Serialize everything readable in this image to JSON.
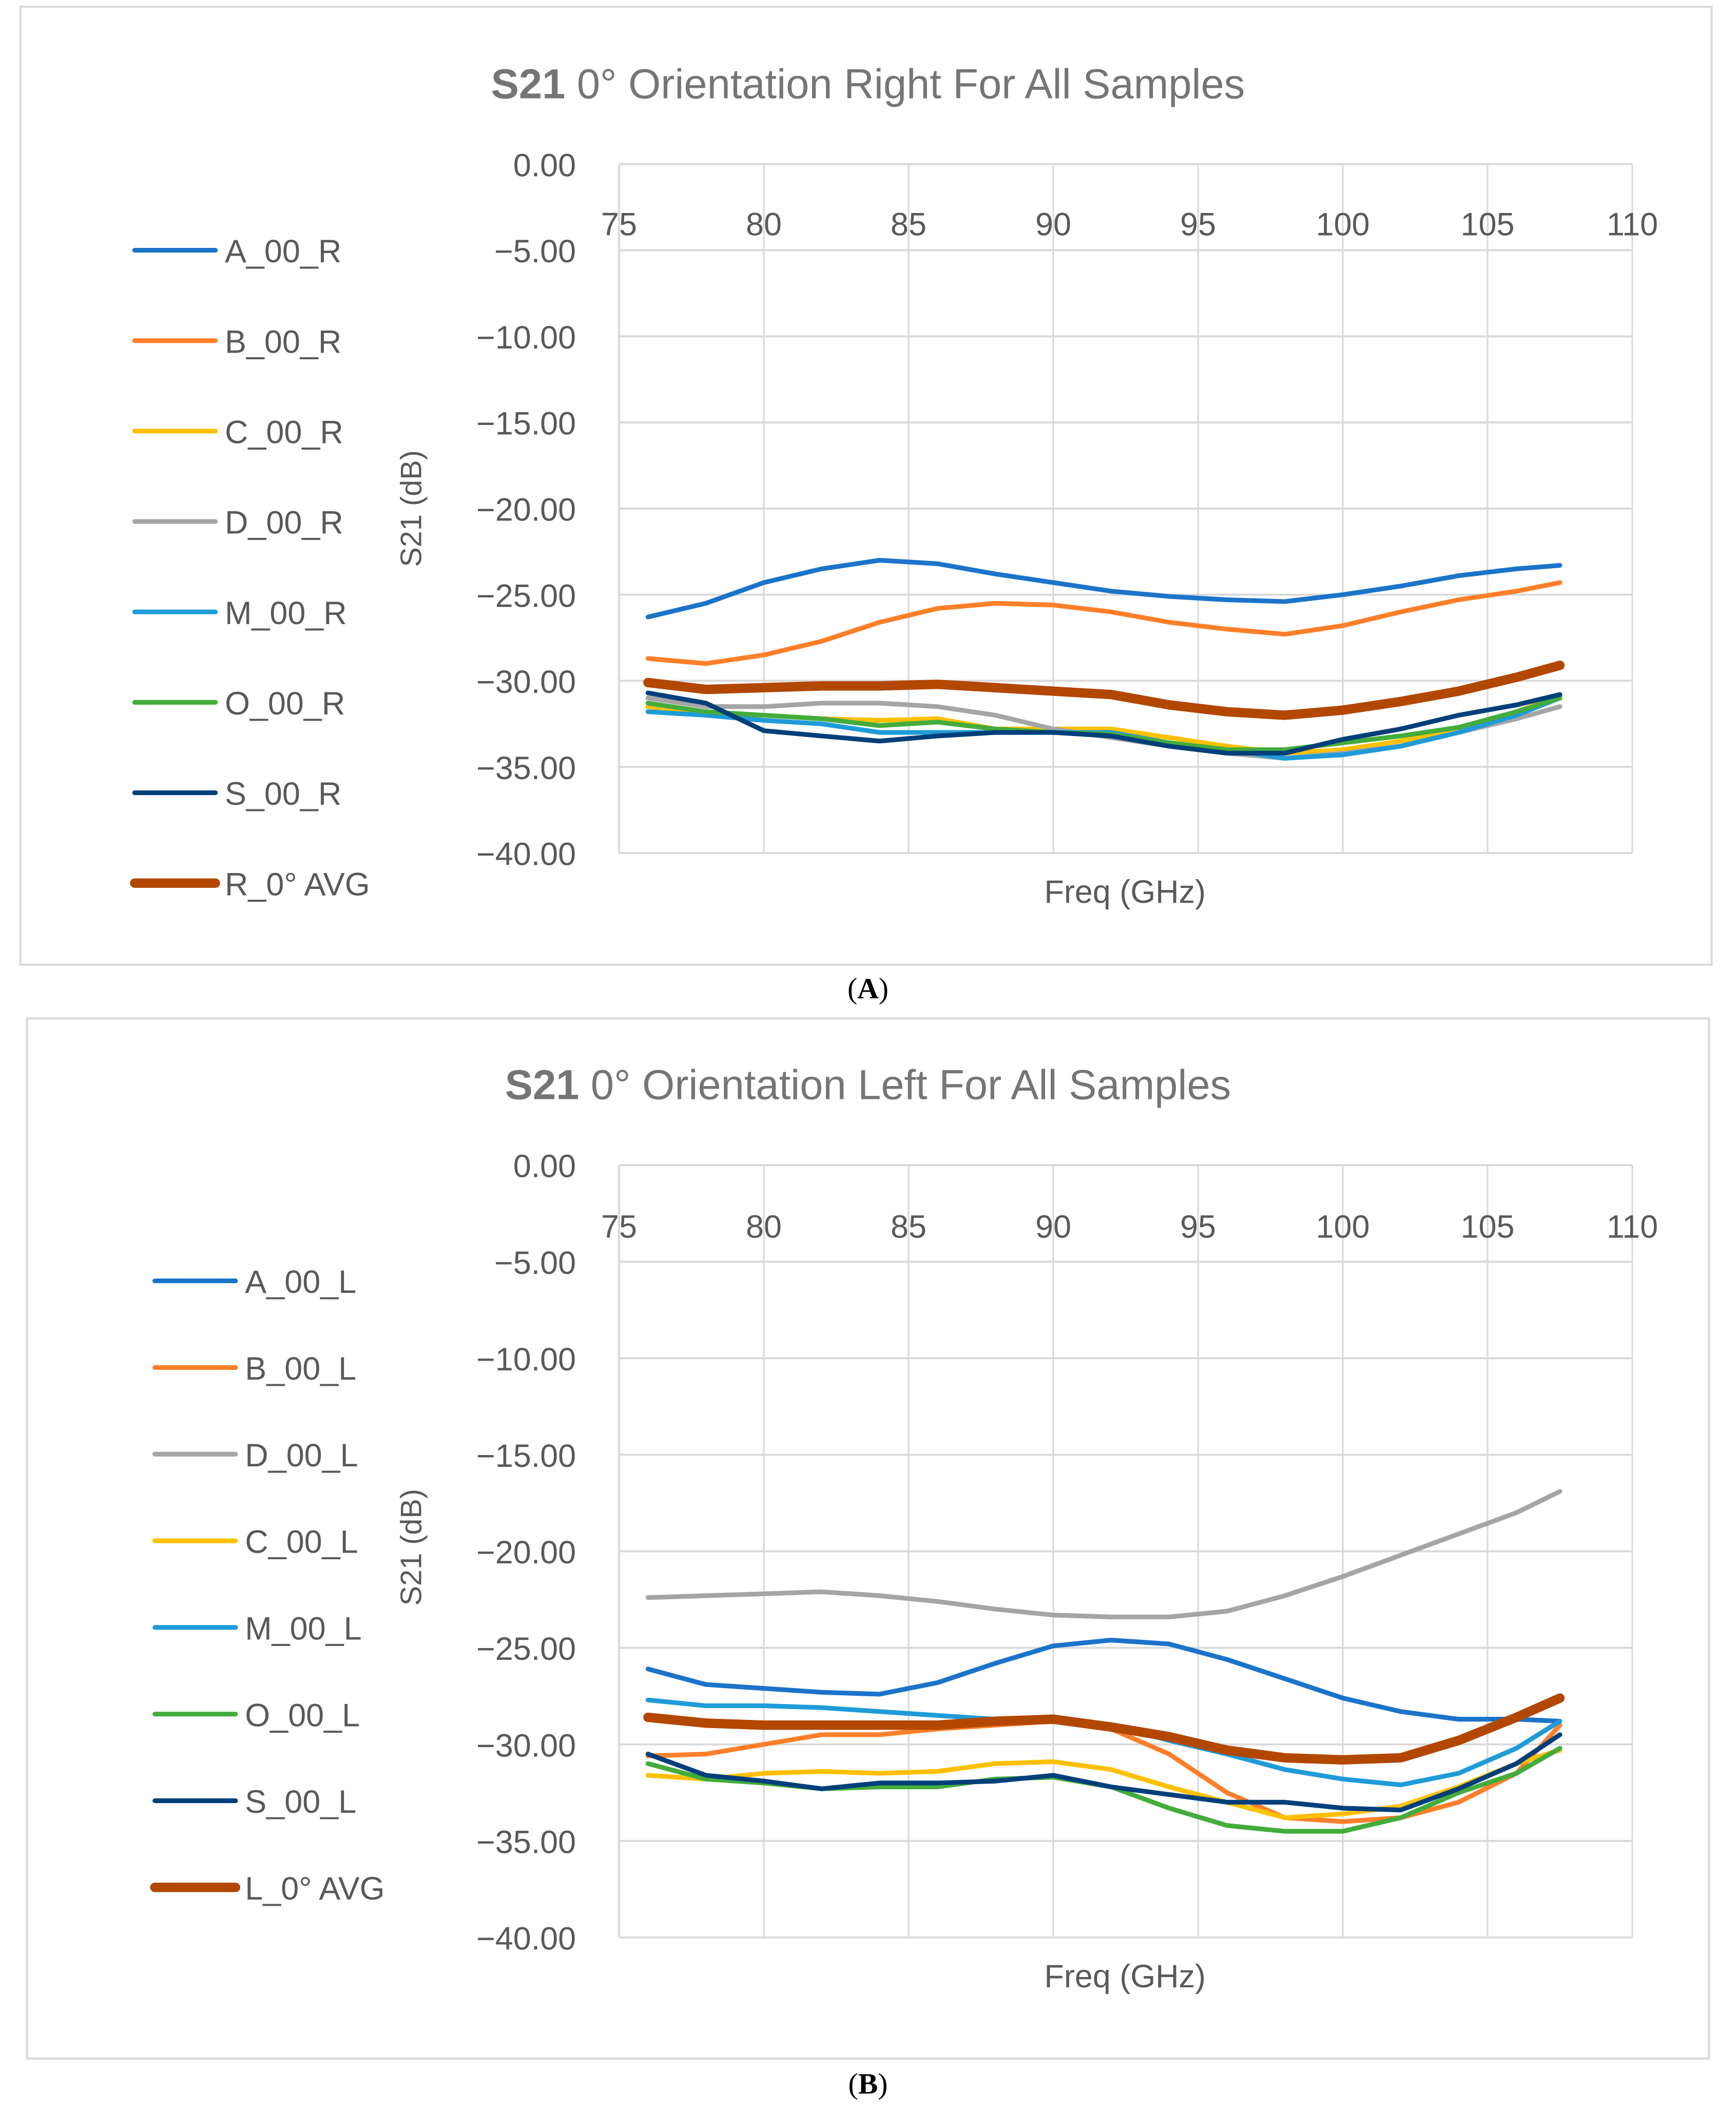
{
  "chart_data": [
    {
      "type": "line",
      "title_bold": "S21",
      "title_rest": "0° Orientation Right For All Samples",
      "xlabel": "Freq (GHz)",
      "ylabel": "S21 (dB)",
      "caption_letter": "A",
      "xlim": [
        75,
        110
      ],
      "ylim": [
        -40,
        0
      ],
      "xticks": [
        "75",
        "80",
        "85",
        "90",
        "95",
        "100",
        "105",
        "110"
      ],
      "yticks": [
        "0.00",
        "−5.00",
        "−10.00",
        "−15.00",
        "−20.00",
        "−25.00",
        "−30.00",
        "−35.00",
        "−40.00"
      ],
      "grid": true,
      "legend_position": "left",
      "x": [
        76,
        78,
        80,
        82,
        84,
        86,
        88,
        90,
        92,
        94,
        96,
        98,
        100,
        102,
        104,
        106,
        107.5
      ],
      "series": [
        {
          "name": "A_00_R",
          "color": "#1B74C9",
          "width": "normal",
          "values": [
            -26.3,
            -25.5,
            -24.3,
            -23.5,
            -23.0,
            -23.2,
            -23.8,
            -24.3,
            -24.8,
            -25.1,
            -25.3,
            -25.4,
            -25.0,
            -24.5,
            -23.9,
            -23.5,
            -23.3
          ]
        },
        {
          "name": "B_00_R",
          "color": "#FF7F2A",
          "width": "normal",
          "values": [
            -28.7,
            -29.0,
            -28.5,
            -27.7,
            -26.6,
            -25.8,
            -25.5,
            -25.6,
            -26.0,
            -26.6,
            -27.0,
            -27.3,
            -26.8,
            -26.0,
            -25.3,
            -24.8,
            -24.3
          ]
        },
        {
          "name": "C_00_R",
          "color": "#FFC000",
          "width": "normal",
          "values": [
            -31.5,
            -32.0,
            -32.0,
            -32.2,
            -32.3,
            -32.2,
            -32.8,
            -32.8,
            -32.8,
            -33.3,
            -33.8,
            -34.2,
            -34.0,
            -33.5,
            -32.8,
            -31.8,
            -30.9
          ]
        },
        {
          "name": "D_00_R",
          "color": "#A5A5A5",
          "width": "normal",
          "values": [
            -31.0,
            -31.5,
            -31.5,
            -31.3,
            -31.3,
            -31.5,
            -32.0,
            -32.8,
            -33.3,
            -33.8,
            -34.2,
            -34.5,
            -34.2,
            -33.8,
            -33.0,
            -32.2,
            -31.5
          ]
        },
        {
          "name": "M_00_R",
          "color": "#1F9BD8",
          "width": "normal",
          "values": [
            -31.8,
            -32.0,
            -32.3,
            -32.5,
            -33.0,
            -33.0,
            -33.0,
            -33.0,
            -33.0,
            -33.6,
            -34.0,
            -34.5,
            -34.3,
            -33.8,
            -33.0,
            -32.0,
            -31.0
          ]
        },
        {
          "name": "O_00_R",
          "color": "#43AC3C",
          "width": "normal",
          "values": [
            -31.3,
            -31.8,
            -32.0,
            -32.2,
            -32.6,
            -32.4,
            -32.8,
            -33.0,
            -33.1,
            -33.6,
            -34.0,
            -34.0,
            -33.6,
            -33.2,
            -32.7,
            -31.8,
            -31.0
          ]
        },
        {
          "name": "S_00_R",
          "color": "#003F7A",
          "width": "normal",
          "values": [
            -30.7,
            -31.3,
            -32.9,
            -33.2,
            -33.5,
            -33.2,
            -33.0,
            -33.0,
            -33.2,
            -33.8,
            -34.2,
            -34.2,
            -33.4,
            -32.8,
            -32.0,
            -31.4,
            -30.8
          ]
        },
        {
          "name": "R_0° AVG",
          "color": "#B24700",
          "width": "thick",
          "values": [
            -30.1,
            -30.5,
            -30.4,
            -30.3,
            -30.3,
            -30.2,
            -30.4,
            -30.6,
            -30.8,
            -31.4,
            -31.8,
            -32.0,
            -31.7,
            -31.2,
            -30.6,
            -29.8,
            -29.1
          ]
        }
      ]
    },
    {
      "type": "line",
      "title_bold": "S21",
      "title_rest": "0° Orientation Left For All Samples",
      "xlabel": "Freq (GHz)",
      "ylabel": "S21 (dB)",
      "caption_letter": "B",
      "xlim": [
        75,
        110
      ],
      "ylim": [
        -40,
        0
      ],
      "xticks": [
        "75",
        "80",
        "85",
        "90",
        "95",
        "100",
        "105",
        "110"
      ],
      "yticks": [
        "0.00",
        "−5.00",
        "−10.00",
        "−15.00",
        "−20.00",
        "−25.00",
        "−30.00",
        "−35.00",
        "−40.00"
      ],
      "grid": true,
      "legend_position": "left",
      "x": [
        76,
        78,
        80,
        82,
        84,
        86,
        88,
        90,
        92,
        94,
        96,
        98,
        100,
        102,
        104,
        106,
        107.5
      ],
      "series": [
        {
          "name": "A_00_L",
          "color": "#1B74C9",
          "width": "normal",
          "values": [
            -26.1,
            -26.9,
            -27.1,
            -27.3,
            -27.4,
            -26.8,
            -25.8,
            -24.9,
            -24.6,
            -24.8,
            -25.6,
            -26.6,
            -27.6,
            -28.3,
            -28.7,
            -28.7,
            -28.8
          ]
        },
        {
          "name": "B_00_L",
          "color": "#FF7F2A",
          "width": "normal",
          "values": [
            -30.6,
            -30.5,
            -30.0,
            -29.5,
            -29.5,
            -29.2,
            -29.0,
            -28.8,
            -29.2,
            -30.5,
            -32.5,
            -33.8,
            -34.0,
            -33.8,
            -33.0,
            -31.5,
            -29.0
          ]
        },
        {
          "name": "D_00_L",
          "color": "#A5A5A5",
          "width": "normal",
          "values": [
            -22.4,
            -22.3,
            -22.2,
            -22.1,
            -22.3,
            -22.6,
            -23.0,
            -23.3,
            -23.4,
            -23.4,
            -23.1,
            -22.3,
            -21.3,
            -20.2,
            -19.1,
            -18.0,
            -16.9
          ]
        },
        {
          "name": "C_00_L",
          "color": "#FFC000",
          "width": "normal",
          "values": [
            -31.6,
            -31.8,
            -31.5,
            -31.4,
            -31.5,
            -31.4,
            -31.0,
            -30.9,
            -31.3,
            -32.2,
            -33.0,
            -33.8,
            -33.6,
            -33.2,
            -32.2,
            -31.0,
            -30.3
          ]
        },
        {
          "name": "M_00_L",
          "color": "#1F9BD8",
          "width": "normal",
          "values": [
            -27.7,
            -28.0,
            -28.0,
            -28.1,
            -28.3,
            -28.5,
            -28.7,
            -28.8,
            -29.0,
            -29.8,
            -30.5,
            -31.3,
            -31.8,
            -32.1,
            -31.5,
            -30.2,
            -28.8
          ]
        },
        {
          "name": "O_00_L",
          "color": "#43AC3C",
          "width": "normal",
          "values": [
            -31.0,
            -31.8,
            -32.0,
            -32.3,
            -32.2,
            -32.2,
            -31.8,
            -31.7,
            -32.2,
            -33.3,
            -34.2,
            -34.5,
            -34.5,
            -33.8,
            -32.5,
            -31.5,
            -30.2
          ]
        },
        {
          "name": "S_00_L",
          "color": "#003F7A",
          "width": "normal",
          "values": [
            -30.5,
            -31.6,
            -31.9,
            -32.3,
            -32.0,
            -32.0,
            -31.9,
            -31.6,
            -32.2,
            -32.6,
            -33.0,
            -33.0,
            -33.3,
            -33.4,
            -32.3,
            -31.0,
            -29.5
          ]
        },
        {
          "name": "L_0° AVG",
          "color": "#B24700",
          "width": "thick",
          "values": [
            -28.6,
            -28.9,
            -29.0,
            -29.0,
            -29.0,
            -29.0,
            -28.8,
            -28.7,
            -29.1,
            -29.6,
            -30.3,
            -30.7,
            -30.8,
            -30.7,
            -29.8,
            -28.6,
            -27.6
          ]
        }
      ]
    }
  ]
}
